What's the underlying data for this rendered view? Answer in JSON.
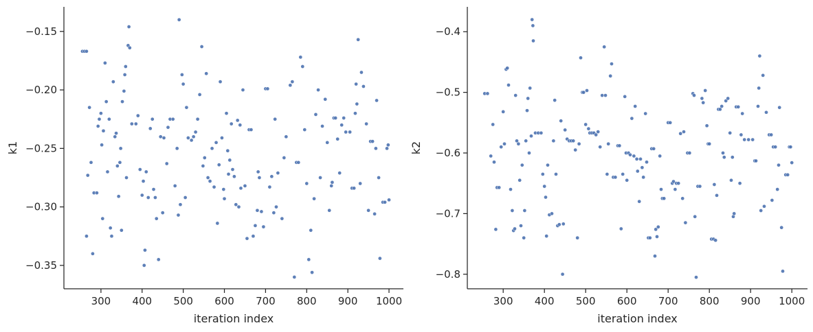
{
  "chart_data": [
    {
      "type": "scatter",
      "xlabel": "iteration index",
      "ylabel": "k1",
      "color": "#4c72b0",
      "x": [
        255,
        260,
        265,
        265,
        268,
        272,
        276,
        280,
        283,
        290,
        293,
        296,
        300,
        302,
        304,
        306,
        310,
        313,
        316,
        320,
        323,
        326,
        330,
        334,
        337,
        340,
        343,
        346,
        348,
        350,
        352,
        356,
        358,
        360,
        362,
        366,
        368,
        370,
        375,
        385,
        390,
        395,
        400,
        403,
        405,
        407,
        410,
        415,
        420,
        425,
        428,
        432,
        435,
        440,
        445,
        450,
        453,
        460,
        463,
        468,
        475,
        480,
        485,
        488,
        490,
        493,
        497,
        500,
        505,
        508,
        512,
        520,
        525,
        530,
        535,
        540,
        545,
        548,
        552,
        556,
        560,
        565,
        570,
        575,
        580,
        583,
        587,
        590,
        594,
        598,
        600,
        605,
        608,
        610,
        613,
        617,
        620,
        624,
        628,
        632,
        635,
        638,
        640,
        645,
        650,
        655,
        660,
        665,
        670,
        675,
        680,
        682,
        685,
        690,
        695,
        700,
        705,
        710,
        715,
        720,
        723,
        726,
        730,
        740,
        745,
        750,
        760,
        765,
        770,
        775,
        780,
        785,
        790,
        795,
        800,
        805,
        810,
        813,
        818,
        822,
        828,
        833,
        838,
        845,
        850,
        855,
        860,
        862,
        866,
        870,
        875,
        880,
        885,
        890,
        895,
        905,
        910,
        915,
        918,
        920,
        922,
        925,
        930,
        933,
        938,
        945,
        950,
        955,
        960,
        965,
        968,
        970,
        975,
        978,
        985,
        990,
        995,
        998,
        1000
      ],
      "values": [
        -0.167,
        -0.167,
        -0.167,
        -0.325,
        -0.273,
        -0.215,
        -0.262,
        -0.34,
        -0.288,
        -0.288,
        -0.231,
        -0.225,
        -0.22,
        -0.247,
        -0.31,
        -0.235,
        -0.177,
        -0.21,
        -0.27,
        -0.225,
        -0.318,
        -0.325,
        -0.193,
        -0.24,
        -0.237,
        -0.265,
        -0.291,
        -0.262,
        -0.25,
        -0.32,
        -0.21,
        -0.201,
        -0.187,
        -0.18,
        -0.275,
        -0.162,
        -0.146,
        -0.164,
        -0.229,
        -0.229,
        -0.222,
        -0.268,
        -0.29,
        -0.278,
        -0.35,
        -0.337,
        -0.27,
        -0.292,
        -0.233,
        -0.225,
        -0.285,
        -0.292,
        -0.31,
        -0.345,
        -0.24,
        -0.305,
        -0.241,
        -0.263,
        -0.232,
        -0.225,
        -0.225,
        -0.282,
        -0.25,
        -0.307,
        -0.14,
        -0.298,
        -0.187,
        -0.195,
        -0.292,
        -0.215,
        -0.241,
        -0.243,
        -0.24,
        -0.236,
        -0.225,
        -0.204,
        -0.163,
        -0.265,
        -0.258,
        -0.186,
        -0.275,
        -0.278,
        -0.25,
        -0.283,
        -0.245,
        -0.314,
        -0.264,
        -0.193,
        -0.241,
        -0.285,
        -0.293,
        -0.22,
        -0.252,
        -0.272,
        -0.26,
        -0.229,
        -0.268,
        -0.274,
        -0.298,
        -0.226,
        -0.3,
        -0.23,
        -0.284,
        -0.2,
        -0.282,
        -0.327,
        -0.234,
        -0.234,
        -0.325,
        -0.316,
        -0.303,
        -0.27,
        -0.275,
        -0.304,
        -0.317,
        -0.199,
        -0.199,
        -0.283,
        -0.274,
        -0.305,
        -0.225,
        -0.3,
        -0.271,
        -0.31,
        -0.258,
        -0.24,
        -0.196,
        -0.193,
        -0.36,
        -0.262,
        -0.262,
        -0.172,
        -0.18,
        -0.234,
        -0.28,
        -0.345,
        -0.32,
        -0.356,
        -0.293,
        -0.221,
        -0.2,
        -0.275,
        -0.231,
        -0.208,
        -0.245,
        -0.303,
        -0.282,
        -0.279,
        -0.224,
        -0.224,
        -0.242,
        -0.271,
        -0.23,
        -0.224,
        -0.236,
        -0.236,
        -0.284,
        -0.284,
        -0.22,
        -0.195,
        -0.212,
        -0.157,
        -0.28,
        -0.185,
        -0.197,
        -0.229,
        -0.303,
        -0.244,
        -0.244,
        -0.306,
        -0.25,
        -0.209,
        -0.275,
        -0.344,
        -0.296,
        -0.296,
        -0.25,
        -0.247,
        -0.294
      ],
      "xlim": [
        210,
        1035
      ],
      "ylim": [
        -0.37,
        -0.129
      ],
      "xticks": [
        300,
        400,
        500,
        600,
        700,
        800,
        900,
        1000
      ],
      "yticks": [
        {
          "value": -0.15,
          "label": "−0.15"
        },
        {
          "value": -0.2,
          "label": "−0.20"
        },
        {
          "value": -0.25,
          "label": "−0.25"
        },
        {
          "value": -0.3,
          "label": "−0.30"
        },
        {
          "value": -0.35,
          "label": "−0.35"
        }
      ]
    },
    {
      "type": "scatter",
      "xlabel": "iteration index",
      "ylabel": "k2",
      "color": "#4c72b0",
      "x": [
        255,
        262,
        270,
        275,
        278,
        282,
        285,
        290,
        295,
        300,
        303,
        307,
        310,
        313,
        318,
        322,
        325,
        328,
        330,
        333,
        337,
        340,
        343,
        346,
        350,
        352,
        355,
        358,
        360,
        363,
        365,
        368,
        370,
        372,
        373,
        378,
        385,
        392,
        396,
        400,
        403,
        405,
        408,
        412,
        418,
        422,
        425,
        428,
        432,
        436,
        440,
        444,
        446,
        450,
        455,
        460,
        465,
        470,
        475,
        480,
        484,
        488,
        492,
        495,
        500,
        503,
        507,
        510,
        515,
        520,
        525,
        530,
        535,
        540,
        545,
        548,
        552,
        555,
        560,
        563,
        567,
        572,
        578,
        582,
        586,
        590,
        595,
        598,
        600,
        604,
        608,
        612,
        617,
        620,
        624,
        626,
        630,
        633,
        637,
        640,
        645,
        648,
        652,
        656,
        660,
        665,
        668,
        670,
        673,
        676,
        680,
        683,
        686,
        690,
        700,
        705,
        710,
        713,
        717,
        720,
        725,
        730,
        735,
        738,
        742,
        747,
        752,
        760,
        763,
        765,
        768,
        772,
        777,
        782,
        785,
        790,
        794,
        797,
        800,
        805,
        810,
        812,
        815,
        818,
        822,
        826,
        830,
        833,
        836,
        840,
        845,
        850,
        853,
        856,
        858,
        860,
        865,
        870,
        874,
        877,
        880,
        885,
        895,
        905,
        910,
        913,
        918,
        920,
        922,
        925,
        930,
        933,
        938,
        945,
        950,
        952,
        955,
        960,
        965,
        968,
        970,
        975,
        978,
        985,
        990,
        994,
        997,
        1000
      ],
      "values": [
        -0.502,
        -0.502,
        -0.605,
        -0.553,
        -0.615,
        -0.726,
        -0.657,
        -0.657,
        -0.59,
        -0.532,
        -0.585,
        -0.462,
        -0.46,
        -0.488,
        -0.66,
        -0.695,
        -0.728,
        -0.725,
        -0.505,
        -0.58,
        -0.585,
        -0.645,
        -0.72,
        -0.62,
        -0.74,
        -0.695,
        -0.58,
        -0.53,
        -0.51,
        -0.6,
        -0.493,
        -0.572,
        -0.38,
        -0.39,
        -0.415,
        -0.567,
        -0.567,
        -0.567,
        -0.635,
        -0.655,
        -0.673,
        -0.737,
        -0.62,
        -0.702,
        -0.7,
        -0.58,
        -0.513,
        -0.635,
        -0.72,
        -0.718,
        -0.547,
        -0.8,
        -0.717,
        -0.562,
        -0.577,
        -0.58,
        -0.58,
        -0.58,
        -0.595,
        -0.74,
        -0.585,
        -0.443,
        -0.5,
        -0.5,
        -0.553,
        -0.497,
        -0.56,
        -0.567,
        -0.567,
        -0.567,
        -0.57,
        -0.565,
        -0.59,
        -0.505,
        -0.425,
        -0.505,
        -0.635,
        -0.585,
        -0.473,
        -0.453,
        -0.64,
        -0.64,
        -0.588,
        -0.588,
        -0.725,
        -0.635,
        -0.507,
        -0.6,
        -0.645,
        -0.6,
        -0.603,
        -0.543,
        -0.605,
        -0.523,
        -0.61,
        -0.63,
        -0.68,
        -0.61,
        -0.624,
        -0.64,
        -0.535,
        -0.615,
        -0.74,
        -0.74,
        -0.593,
        -0.593,
        -0.77,
        -0.726,
        -0.738,
        -0.722,
        -0.605,
        -0.66,
        -0.675,
        -0.675,
        -0.55,
        -0.55,
        -0.65,
        -0.647,
        -0.66,
        -0.65,
        -0.65,
        -0.568,
        -0.675,
        -0.565,
        -0.715,
        -0.6,
        -0.6,
        -0.502,
        -0.505,
        -0.705,
        -0.805,
        -0.655,
        -0.655,
        -0.51,
        -0.517,
        -0.497,
        -0.555,
        -0.585,
        -0.585,
        -0.742,
        -0.742,
        -0.652,
        -0.744,
        -0.67,
        -0.528,
        -0.528,
        -0.523,
        -0.6,
        -0.607,
        -0.514,
        -0.51,
        -0.567,
        -0.645,
        -0.607,
        -0.705,
        -0.7,
        -0.524,
        -0.524,
        -0.65,
        -0.57,
        -0.535,
        -0.578,
        -0.578,
        -0.578,
        -0.613,
        -0.613,
        -0.523,
        -0.493,
        -0.44,
        -0.695,
        -0.472,
        -0.688,
        -0.533,
        -0.57,
        -0.57,
        -0.678,
        -0.59,
        -0.59,
        -0.66,
        -0.62,
        -0.525,
        -0.723,
        -0.795,
        -0.636,
        -0.636,
        -0.59,
        -0.59,
        -0.616
      ],
      "xlim": [
        213,
        1038
      ],
      "ylim": [
        -0.824,
        -0.359
      ],
      "xticks": [
        300,
        400,
        500,
        600,
        700,
        800,
        900,
        1000
      ],
      "yticks": [
        {
          "value": -0.4,
          "label": "−0.4"
        },
        {
          "value": -0.5,
          "label": "−0.5"
        },
        {
          "value": -0.6,
          "label": "−0.6"
        },
        {
          "value": -0.7,
          "label": "−0.7"
        },
        {
          "value": -0.8,
          "label": "−0.8"
        }
      ]
    }
  ]
}
